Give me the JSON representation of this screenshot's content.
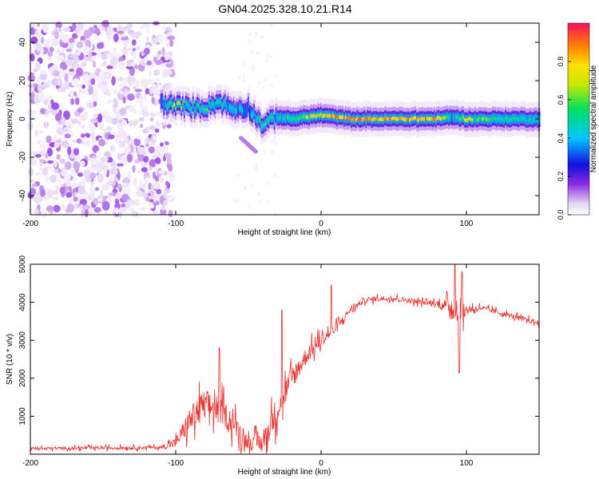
{
  "title": "GN04.2025.328.10.21.R14",
  "chart_data": [
    {
      "type": "heatmap",
      "xlabel": "Height of straight line (km)",
      "ylabel": "Frequency (Hz)",
      "xlim": [
        -200,
        150
      ],
      "ylim": [
        -50,
        50
      ],
      "xticks": [
        -200,
        -100,
        0,
        100
      ],
      "yticks": [
        -40,
        -20,
        0,
        20,
        40
      ],
      "colorbar": {
        "label": "Normalized spectral amplitude",
        "range": [
          0,
          1
        ],
        "ticks": [
          "0.0",
          "0.2",
          "0.4",
          "0.6",
          "0.8"
        ],
        "colormap": [
          "#ffffff",
          "#e6d6f4",
          "#8b2be2",
          "#1010e0",
          "#00c8ff",
          "#00e060",
          "#c8e800",
          "#ffe000",
          "#ff8000",
          "#ff1060"
        ]
      },
      "ridge": {
        "x": [
          -110,
          -100,
          -90,
          -80,
          -70,
          -60,
          -50,
          -40,
          -30,
          -20,
          -10,
          0,
          10,
          20,
          40,
          60,
          80,
          90,
          100,
          120,
          150
        ],
        "freq": [
          8,
          7,
          6,
          6,
          9,
          5,
          6,
          -3,
          1,
          0,
          1,
          2,
          1,
          0,
          0,
          0,
          0,
          1,
          0,
          0,
          0
        ],
        "peak_amplitude": [
          0.4,
          0.8,
          0.5,
          0.6,
          0.5,
          0.5,
          0.4,
          0.6,
          0.5,
          0.6,
          0.7,
          0.8,
          0.9,
          0.9,
          0.9,
          0.9,
          0.9,
          0.5,
          0.7,
          0.6,
          0.5
        ]
      },
      "noise_region_x": [
        -200,
        -110
      ],
      "secondary_feature": {
        "x": [
          -55,
          -45
        ],
        "freq": [
          -10,
          -17
        ]
      }
    },
    {
      "type": "line",
      "xlabel": "Height of straight line (km)",
      "ylabel": "SNR (10 * v/v)",
      "xlim": [
        -200,
        150
      ],
      "ylim": [
        0,
        5000
      ],
      "xticks": [
        -200,
        -100,
        0,
        100
      ],
      "yticks": [
        1000,
        2000,
        3000,
        4000,
        5000
      ],
      "color": "#e8312f",
      "envelope": {
        "x": [
          -200,
          -110,
          -100,
          -90,
          -80,
          -70,
          -60,
          -50,
          -40,
          -30,
          -20,
          -10,
          0,
          10,
          20,
          30,
          40,
          50,
          60,
          70,
          80,
          90,
          95,
          100,
          110,
          120,
          130,
          140,
          150
        ],
        "base": [
          150,
          180,
          300,
          900,
          1300,
          1200,
          800,
          300,
          300,
          1200,
          2000,
          2600,
          3000,
          3300,
          3800,
          4050,
          4100,
          4100,
          4050,
          4000,
          3950,
          3900,
          3600,
          3800,
          3850,
          3750,
          3650,
          3550,
          3450
        ],
        "spread": [
          80,
          100,
          300,
          800,
          900,
          800,
          700,
          400,
          600,
          900,
          700,
          500,
          400,
          300,
          200,
          150,
          150,
          150,
          150,
          150,
          200,
          500,
          900,
          300,
          150,
          150,
          150,
          150,
          150
        ]
      },
      "spikes": [
        {
          "x": -70,
          "y": 2800
        },
        {
          "x": -27,
          "y": 3800
        },
        {
          "x": 7,
          "y": 4450
        },
        {
          "x": 92,
          "y": 5050
        },
        {
          "x": 95,
          "y": 2150
        },
        {
          "x": 97,
          "y": 4800
        }
      ]
    }
  ]
}
